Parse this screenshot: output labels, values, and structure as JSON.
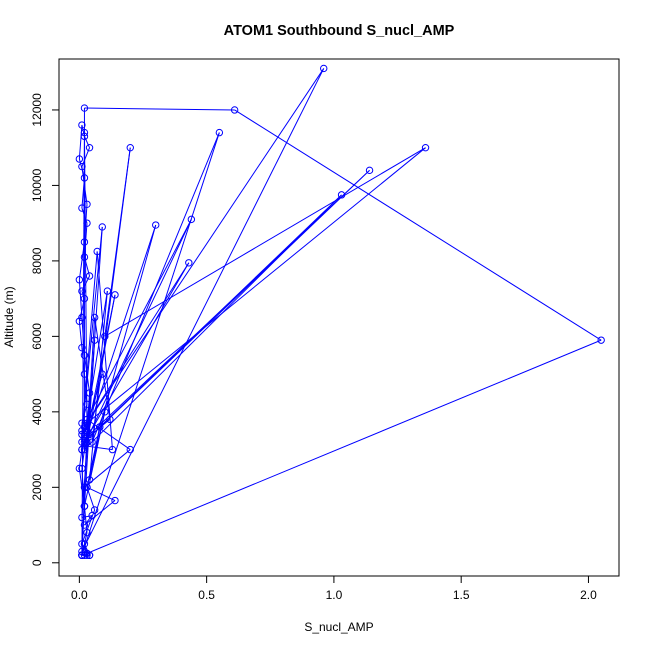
{
  "chart_data": {
    "type": "line",
    "title": "ATOM1 Southbound S_nucl_AMP",
    "xlabel": "S_nucl_AMP",
    "ylabel": "Altitude (m)",
    "xlim": [
      -0.08,
      2.12
    ],
    "ylim": [
      -350,
      13350
    ],
    "x_ticks": [
      {
        "value": 0.0,
        "label": "0.0"
      },
      {
        "value": 0.5,
        "label": "0.5"
      },
      {
        "value": 1.0,
        "label": "1.0"
      },
      {
        "value": 1.5,
        "label": "1.5"
      },
      {
        "value": 2.0,
        "label": "2.0"
      }
    ],
    "y_ticks": [
      {
        "value": 0,
        "label": "0"
      },
      {
        "value": 2000,
        "label": "2000"
      },
      {
        "value": 4000,
        "label": "4000"
      },
      {
        "value": 6000,
        "label": "6000"
      },
      {
        "value": 8000,
        "label": "8000"
      },
      {
        "value": 10000,
        "label": "10000"
      },
      {
        "value": 12000,
        "label": "12000"
      }
    ],
    "grid": false,
    "legend": false,
    "markers": "open-circle",
    "color": "#0000ff",
    "series": [
      {
        "x": [
          0.01,
          0.03,
          0.02,
          0.01,
          0.03,
          0.04,
          0.02,
          0.01,
          0.0,
          0.02,
          0.03,
          0.01,
          0.04,
          0.02,
          0.01,
          0.0,
          0.02,
          0.01,
          0.03,
          0.02,
          0.04,
          0.01,
          0.02,
          0.0,
          0.01,
          0.02,
          0.03,
          0.01,
          0.02,
          0.01,
          0.0,
          0.02,
          0.01,
          0.96,
          0.02,
          0.02,
          0.61,
          2.05,
          0.03,
          0.01,
          0.02,
          0.03,
          0.01,
          0.55,
          0.05,
          0.2,
          0.1,
          1.36,
          0.03,
          0.01,
          0.43,
          0.02,
          1.14,
          0.04,
          0.02,
          1.03,
          0.08,
          0.3,
          0.01,
          0.44,
          0.03,
          0.2,
          0.02,
          0.09,
          0.01,
          0.07,
          0.13,
          0.02,
          0.14,
          0.03,
          0.06,
          0.12,
          0.01,
          0.09,
          0.02,
          0.11,
          0.04,
          0.08,
          0.03,
          0.1,
          0.02,
          0.06,
          0.01,
          0.05,
          0.02,
          0.14,
          0.03,
          0.06,
          0.01,
          0.04,
          0.02,
          0.03,
          0.01,
          0.02,
          0.04
        ],
        "y": [
          200,
          800,
          1500,
          2500,
          3500,
          4500,
          5500,
          6500,
          7500,
          8500,
          9500,
          10500,
          11000,
          11300,
          11600,
          10700,
          10200,
          9400,
          9000,
          8100,
          7600,
          7200,
          7000,
          6400,
          5700,
          5000,
          4200,
          3700,
          3300,
          3000,
          2500,
          1500,
          300,
          13100,
          3600,
          12050,
          12000,
          5900,
          250,
          200,
          11400,
          3500,
          200,
          11400,
          3200,
          11000,
          6000,
          11000,
          3700,
          3500,
          7950,
          3200,
          10400,
          3400,
          3000,
          9750,
          3600,
          8950,
          3000,
          9100,
          3800,
          3000,
          2000,
          8900,
          3400,
          8250,
          3000,
          3100,
          7100,
          3200,
          6500,
          3800,
          3200,
          5000,
          3400,
          7200,
          2200,
          3600,
          2000,
          4000,
          1500,
          5900,
          1200,
          1250,
          1000,
          1650,
          2000,
          1400,
          500,
          200,
          500,
          200,
          200,
          200,
          200
        ]
      }
    ]
  }
}
